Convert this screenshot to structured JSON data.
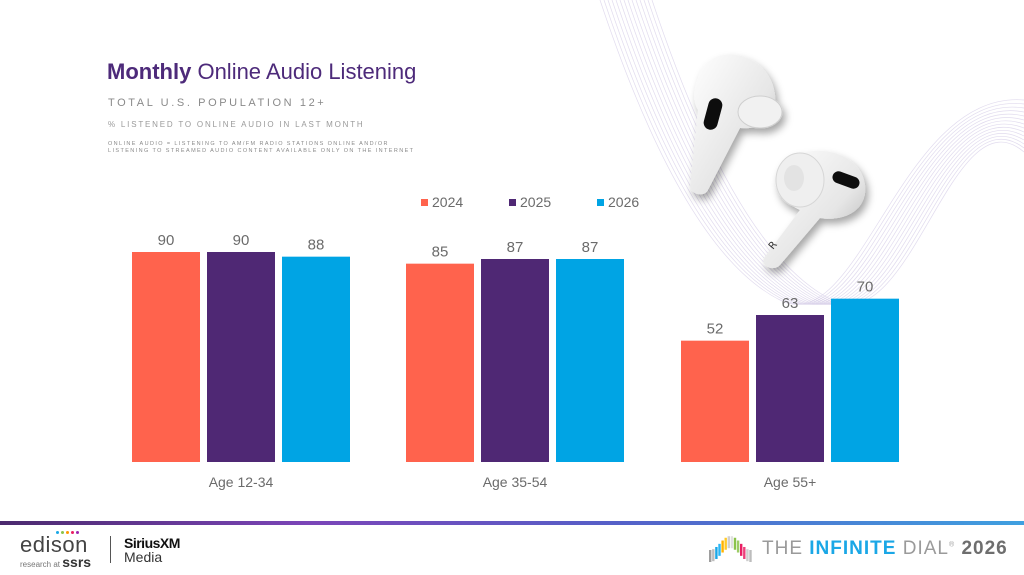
{
  "header": {
    "title_bold": "Monthly",
    "title_rest": "Online Audio Listening",
    "subtitle": "TOTAL U.S. POPULATION 12+",
    "measure": "% LISTENED TO ONLINE AUDIO IN LAST MONTH",
    "note_line1": "ONLINE AUDIO = LISTENING TO AM/FM RADIO STATIONS ONLINE AND/OR",
    "note_line2": "LISTENING TO STREAMED AUDIO CONTENT AVAILABLE ONLY ON THE INTERNET"
  },
  "chart_data": {
    "type": "bar",
    "title": "Monthly Online Audio Listening",
    "xlabel": "",
    "ylabel": "% listened to online audio in last month",
    "ylim": [
      0,
      90
    ],
    "grid": false,
    "legend_position": "top-center",
    "categories": [
      "Age 12-34",
      "Age 35-54",
      "Age 55+"
    ],
    "series": [
      {
        "name": "2024",
        "color": "#ff634d",
        "values": [
          90,
          85,
          52
        ]
      },
      {
        "name": "2025",
        "color": "#4f2874",
        "values": [
          90,
          87,
          63
        ]
      },
      {
        "name": "2026",
        "color": "#00a4e4",
        "values": [
          88,
          87,
          70
        ]
      }
    ]
  },
  "footer": {
    "edison_word": "edison",
    "edison_sub_prefix": "research at",
    "edison_sub_brand": "ssrs",
    "sirius_top": "SiriusXM",
    "sirius_bottom": "Media",
    "dial_the": "THE",
    "dial_infinite": "INFINITE",
    "dial_dial": "DIAL",
    "dial_reg": "®",
    "dial_year": "2026"
  },
  "icons": {
    "decoration": "earbuds-image",
    "background": "wave-lines"
  }
}
